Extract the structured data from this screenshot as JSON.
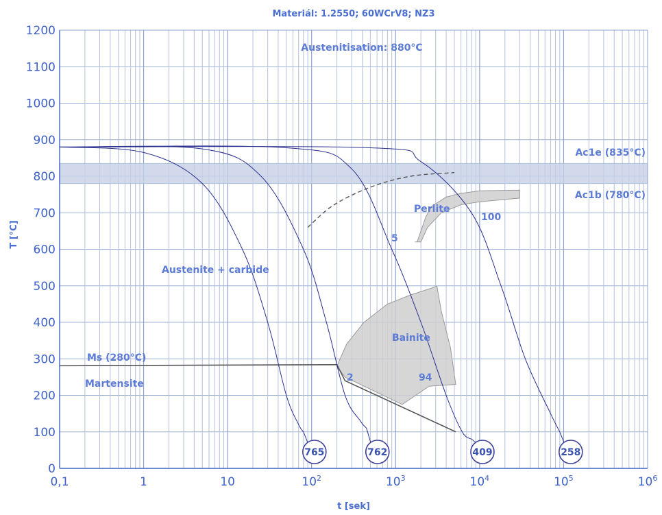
{
  "chart_data": {
    "type": "line",
    "title": "Materiál: 1.2550; 60WCrV8; NZ3",
    "xlabel": "t [sek]",
    "ylabel": "T [°C]",
    "x_scale": "log",
    "xlim": [
      0.1,
      1000000
    ],
    "ylim": [
      0,
      1200
    ],
    "grid": true,
    "x_ticks": [
      {
        "value": 0.1,
        "base": "0,1",
        "exp": ""
      },
      {
        "value": 1,
        "base": "1",
        "exp": ""
      },
      {
        "value": 10,
        "base": "10",
        "exp": ""
      },
      {
        "value": 100,
        "base": "10",
        "exp": "2"
      },
      {
        "value": 1000,
        "base": "10",
        "exp": "3"
      },
      {
        "value": 10000,
        "base": "10",
        "exp": "4"
      },
      {
        "value": 100000,
        "base": "10",
        "exp": "5"
      },
      {
        "value": 1000000,
        "base": "10",
        "exp": "6"
      }
    ],
    "y_ticks": [
      {
        "value": 0,
        "label": "0"
      },
      {
        "value": 100,
        "label": "100"
      },
      {
        "value": 200,
        "label": "200"
      },
      {
        "value": 300,
        "label": "300"
      },
      {
        "value": 400,
        "label": "400"
      },
      {
        "value": 500,
        "label": "500"
      },
      {
        "value": 600,
        "label": "600"
      },
      {
        "value": 700,
        "label": "700"
      },
      {
        "value": 800,
        "label": "800"
      },
      {
        "value": 900,
        "label": "900"
      },
      {
        "value": 1000,
        "label": "1000"
      },
      {
        "value": 1100,
        "label": "1100"
      },
      {
        "value": 1200,
        "label": "1200"
      }
    ],
    "austenitisation": {
      "label": "Austenitisation: 880°C",
      "temperature": 880
    },
    "critical_band": [
      {
        "name": "Ac1e (835°C)",
        "temperature": 835
      },
      {
        "name": "Ac1b (780°C)",
        "temperature": 780
      }
    ],
    "ms_line": {
      "label": "Ms (280°C)",
      "x": [
        0.1,
        200
      ],
      "y": [
        281,
        284
      ]
    },
    "bainite_finish_line": {
      "x": [
        200,
        250,
        5200
      ],
      "y": [
        284,
        240,
        100
      ]
    },
    "pearlite_start_dashed": {
      "x": [
        90,
        180,
        500,
        1500,
        5000
      ],
      "y": [
        660,
        720,
        770,
        800,
        810
      ]
    },
    "regions": [
      {
        "name": "Perlite",
        "x": [
          2000,
          2400,
          3500,
          6000,
          10000,
          30000,
          30000,
          10000,
          6000,
          4000,
          2700,
          2300,
          2000,
          1800,
          1700,
          2000
        ],
        "y": [
          620,
          660,
          700,
          722,
          730,
          740,
          762,
          760,
          753,
          743,
          718,
          690,
          650,
          620,
          620,
          620
        ]
      },
      {
        "name": "Bainite",
        "x": [
          200,
          260,
          420,
          800,
          1500,
          2800,
          3100,
          3500,
          4500,
          5200,
          2500,
          1200,
          250,
          200
        ],
        "y": [
          280,
          340,
          400,
          450,
          475,
          495,
          500,
          430,
          330,
          230,
          225,
          175,
          250,
          280
        ]
      }
    ],
    "phase_labels": [
      "Austenite + carbide",
      "Ms (280°C)",
      "Martensite",
      "Perlite",
      "Bainite"
    ],
    "region_numbers": [
      "5",
      "100",
      "2",
      "94"
    ],
    "series": [
      {
        "hardness": "765",
        "x": [
          0.1,
          1,
          5,
          15,
          30,
          50,
          70,
          80
        ],
        "y": [
          880,
          865,
          780,
          600,
          400,
          200,
          120,
          100
        ]
      },
      {
        "hardness": "762",
        "x": [
          0.1,
          5,
          25,
          80,
          150,
          250,
          380,
          450
        ],
        "y": [
          880,
          875,
          800,
          600,
          400,
          200,
          130,
          110
        ]
      },
      {
        "hardness": "409",
        "x": [
          0.1,
          50,
          300,
          900,
          2000,
          4000,
          6200,
          8000
        ],
        "y": [
          880,
          878,
          820,
          600,
          400,
          200,
          100,
          80
        ]
      },
      {
        "hardness": "258",
        "x": [
          0.1,
          500,
          2000,
          8000,
          18000,
          35000,
          70000,
          90000
        ],
        "y": [
          880,
          878,
          840,
          700,
          500,
          300,
          150,
          100
        ]
      }
    ]
  }
}
